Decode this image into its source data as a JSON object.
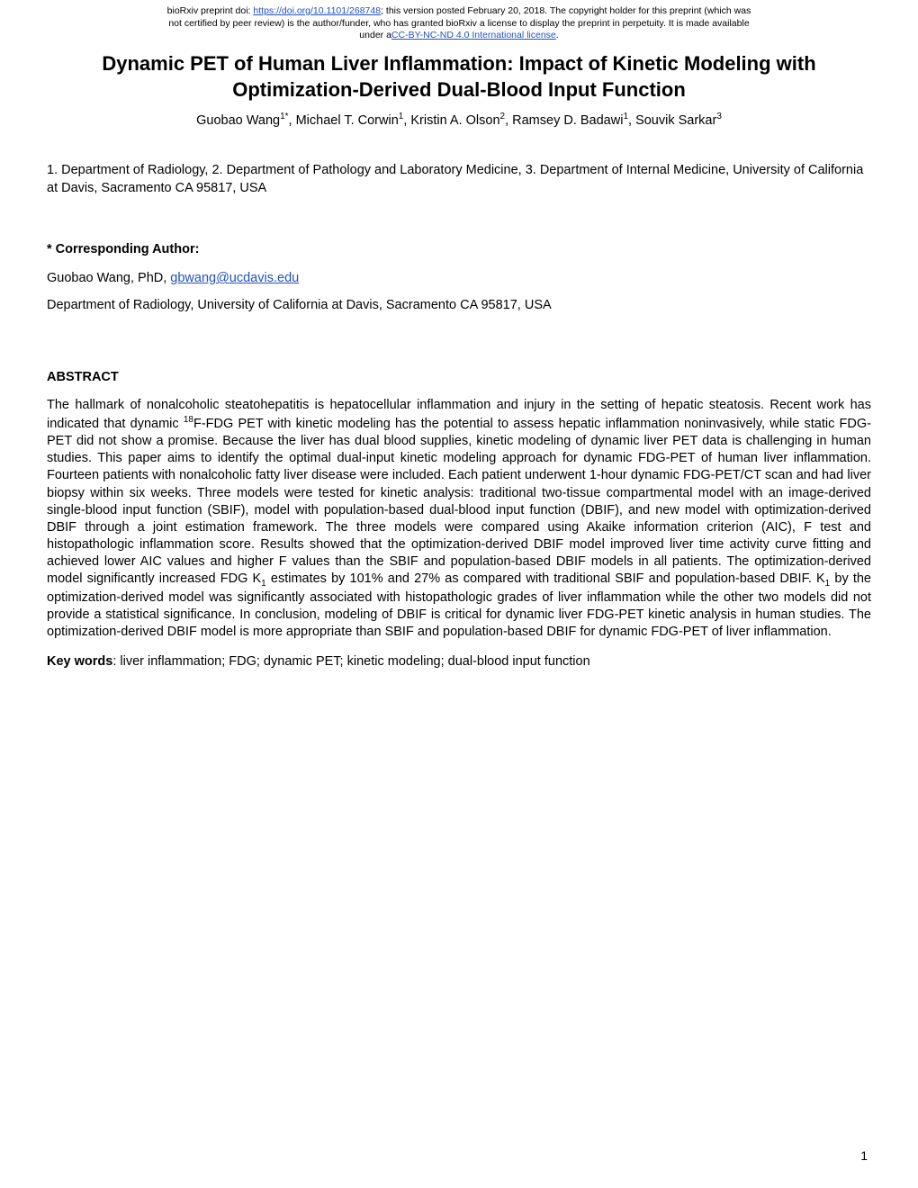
{
  "header": {
    "line1_pre": "bioRxiv preprint doi: ",
    "doi": "https://doi.org/10.1101/268748",
    "line1_mid": "; this version posted February 20, 2018. ",
    "line1_post": "The copyright holder for this preprint (which was",
    "line2": "not certified by peer review) is the author/funder, who has granted bioRxiv a license to display the preprint in perpetuity. It is made available",
    "line3_pre": "under a",
    "license": "CC-BY-NC-ND 4.0 International license",
    "line3_post": "."
  },
  "title": "Dynamic PET of Human Liver Inflammation: Impact of Kinetic Modeling with Optimization-Derived Dual-Blood Input Function",
  "authors": {
    "a1": "Guobao Wang",
    "a1_sup": "1*",
    "a2": "Michael T. Corwin",
    "a2_sup": "1",
    "a3": "Kristin A. Olson",
    "a3_sup": "2",
    "a4": "Ramsey D. Badawi",
    "a4_sup": "1",
    "a5": "Souvik Sarkar",
    "a5_sup": "3"
  },
  "affiliations": "1. Department of Radiology, 2. Department of Pathology and Laboratory Medicine, 3. Department of Internal Medicine, University of California at Davis, Sacramento CA 95817, USA",
  "corr_label": "* Corresponding Author:",
  "corr_name_pre": "Guobao Wang, PhD, ",
  "corr_email": "gbwang@ucdavis.edu",
  "corr_addr": "Department of Radiology, University of California at Davis, Sacramento CA 95817, USA",
  "abstract_label": "ABSTRACT",
  "abstract": {
    "p1a": "The hallmark of nonalcoholic steatohepatitis is hepatocellular inflammation and injury in the setting of hepatic steatosis. Recent work has indicated that dynamic ",
    "iso_sup": "18",
    "p1b": "F-FDG PET with kinetic modeling has the potential to assess hepatic inflammation noninvasively, while static FDG-PET did not show a promise. Because the liver has dual blood supplies, kinetic modeling of dynamic liver PET data is challenging in human studies. This paper aims to identify the optimal dual-input kinetic modeling approach for dynamic FDG-PET of human liver inflammation. Fourteen patients with nonalcoholic fatty liver disease were included. Each patient underwent 1-hour dynamic FDG-PET/CT scan and had liver biopsy within six weeks. Three models were tested for kinetic analysis: traditional two-tissue compartmental model with an image-derived single-blood input function (SBIF), model with population-based dual-blood input function (DBIF), and new model with optimization-derived DBIF through a joint estimation framework. The three models were compared using Akaike information criterion (AIC), F test and histopathologic inflammation score. Results showed that the optimization-derived DBIF model improved liver time activity curve fitting and achieved lower AIC values and higher F values than the SBIF and population-based DBIF models in all patients. The optimization-derived model significantly increased FDG K",
    "k_sub1": "1",
    "p1c": " estimates by 101% and 27% as compared with traditional SBIF and population-based DBIF. K",
    "k_sub2": "1",
    "p1d": " by the optimization-derived model was significantly associated with histopathologic grades of liver inflammation while the other two models did not provide a statistical significance. In conclusion, modeling of DBIF is critical for dynamic liver FDG-PET kinetic analysis in human studies. The optimization-derived DBIF model is more appropriate than SBIF and population-based DBIF for dynamic FDG-PET of liver inflammation."
  },
  "keywords_label": "Key words",
  "keywords": ": liver inflammation; FDG; dynamic PET; kinetic modeling; dual-blood input function",
  "page_num": "1",
  "colors": {
    "link": "#2050c0",
    "text": "#000000",
    "bg": "#ffffff"
  },
  "fonts": {
    "body_pt": 14.5,
    "title_pt": 22,
    "header_pt": 10.5,
    "sup_pt": 10
  }
}
